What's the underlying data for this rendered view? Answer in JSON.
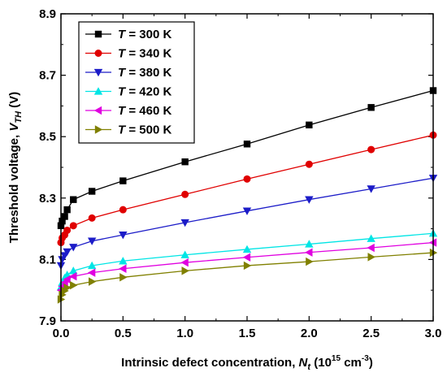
{
  "chart_data": {
    "type": "line",
    "xlabel": {
      "prefix": "Intrinsic defect concentration, ",
      "var": "N",
      "sub": "t",
      "unit_open": " (10",
      "unit_exp": "15",
      "unit_mid": " cm",
      "unit_exp2": "-3",
      "unit_close": ")"
    },
    "ylabel": {
      "prefix": "Threshold voltage, ",
      "var": "V",
      "sub": "TH",
      "unit": " (V)"
    },
    "xlim": [
      0.0,
      3.0
    ],
    "ylim": [
      7.9,
      8.9
    ],
    "xticks": [
      "0.0",
      "0.5",
      "1.0",
      "1.5",
      "2.0",
      "2.5",
      "3.0"
    ],
    "yticks": [
      "7.9",
      "8.1",
      "8.3",
      "8.5",
      "8.7",
      "8.9"
    ],
    "legend_position": "top-left",
    "x": [
      0.0,
      0.01,
      0.03,
      0.05,
      0.1,
      0.25,
      0.5,
      1.0,
      1.5,
      2.0,
      2.5,
      3.0
    ],
    "series": [
      {
        "name": "T = 300 K",
        "label_var": "T",
        "label_rest": " = 300 K",
        "color": "#000000",
        "marker": "square",
        "values": [
          8.21,
          8.225,
          8.24,
          8.262,
          8.295,
          8.322,
          8.356,
          8.418,
          8.476,
          8.538,
          8.595,
          8.65
        ]
      },
      {
        "name": "T = 340 K",
        "label_var": "T",
        "label_rest": " = 340 K",
        "color": "#e00000",
        "marker": "circle",
        "values": [
          8.155,
          8.17,
          8.18,
          8.195,
          8.21,
          8.235,
          8.262,
          8.312,
          8.362,
          8.41,
          8.458,
          8.505
        ]
      },
      {
        "name": "T = 380 K",
        "label_var": "T",
        "label_rest": " = 380 K",
        "color": "#1c1cc8",
        "marker": "triangle-down",
        "values": [
          8.08,
          8.1,
          8.113,
          8.125,
          8.14,
          8.16,
          8.18,
          8.22,
          8.258,
          8.295,
          8.33,
          8.365
        ]
      },
      {
        "name": "T = 420 K",
        "label_var": "T",
        "label_rest": " = 420 K",
        "color": "#00e5e5",
        "marker": "triangle-up",
        "values": [
          8.01,
          8.025,
          8.04,
          8.05,
          8.063,
          8.08,
          8.095,
          8.115,
          8.133,
          8.15,
          8.168,
          8.185
        ]
      },
      {
        "name": "T = 460 K",
        "label_var": "T",
        "label_rest": " = 460 K",
        "color": "#e000e0",
        "marker": "triangle-left",
        "values": [
          8.0,
          8.012,
          8.025,
          8.035,
          8.045,
          8.057,
          8.07,
          8.09,
          8.107,
          8.123,
          8.138,
          8.155
        ]
      },
      {
        "name": "T = 500 K",
        "label_var": "T",
        "label_rest": " = 500 K",
        "color": "#808000",
        "marker": "triangle-right",
        "values": [
          7.97,
          7.985,
          7.998,
          8.008,
          8.016,
          8.028,
          8.042,
          8.063,
          8.08,
          8.093,
          8.108,
          8.122
        ]
      }
    ]
  }
}
